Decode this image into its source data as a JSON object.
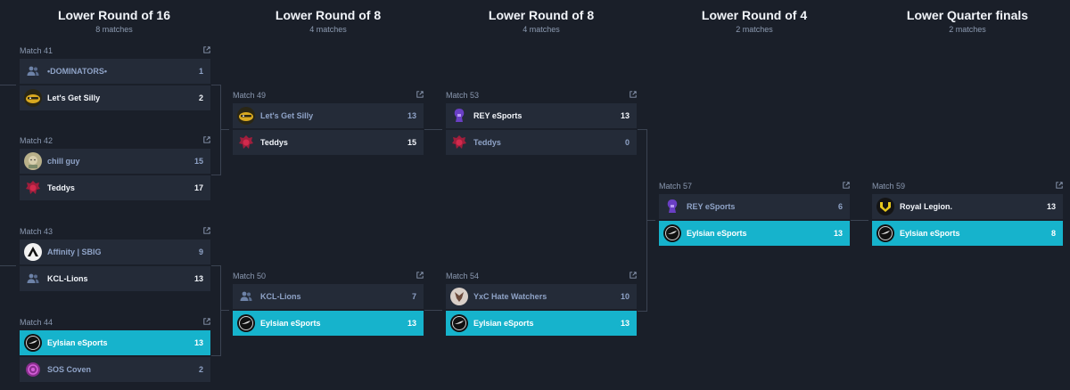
{
  "rounds": [
    {
      "title": "Lower Round of 16",
      "subtitle": "8 matches"
    },
    {
      "title": "Lower Round of 8",
      "subtitle": "4 matches"
    },
    {
      "title": "Lower Round of 8",
      "subtitle": "4 matches"
    },
    {
      "title": "Lower Round of 4",
      "subtitle": "2 matches"
    },
    {
      "title": "Lower Quarter finals",
      "subtitle": "2 matches"
    }
  ],
  "matches": [
    {
      "label": "Match 41",
      "teams": [
        {
          "name": "•DOMINATORS•",
          "score": "1",
          "logo": "group-icon"
        },
        {
          "name": "Let's Get Silly",
          "score": "2",
          "logo": "silly-logo"
        }
      ]
    },
    {
      "label": "Match 42",
      "teams": [
        {
          "name": "chill guy",
          "score": "15",
          "logo": "chill-guy-logo"
        },
        {
          "name": "Teddys",
          "score": "17",
          "logo": "teddys-logo"
        }
      ]
    },
    {
      "label": "Match 43",
      "teams": [
        {
          "name": "Affinity | SBIG",
          "score": "9",
          "logo": "affinity-logo"
        },
        {
          "name": "KCL-Lions",
          "score": "13",
          "logo": "group-icon"
        }
      ]
    },
    {
      "label": "Match 44",
      "teams": [
        {
          "name": "Eylsian eSports",
          "score": "13",
          "logo": "eylsian-logo"
        },
        {
          "name": "SOS Coven",
          "score": "2",
          "logo": "sos-logo"
        }
      ]
    },
    {
      "label": "Match 49",
      "teams": [
        {
          "name": "Let's Get Silly",
          "score": "13",
          "logo": "silly-logo"
        },
        {
          "name": "Teddys",
          "score": "15",
          "logo": "teddys-logo"
        }
      ]
    },
    {
      "label": "Match 50",
      "teams": [
        {
          "name": "KCL-Lions",
          "score": "7",
          "logo": "group-icon"
        },
        {
          "name": "Eylsian eSports",
          "score": "13",
          "logo": "eylsian-logo"
        }
      ]
    },
    {
      "label": "Match 53",
      "teams": [
        {
          "name": "REY eSports",
          "score": "13",
          "logo": "rey-logo"
        },
        {
          "name": "Teddys",
          "score": "0",
          "logo": "teddys-logo"
        }
      ]
    },
    {
      "label": "Match 54",
      "teams": [
        {
          "name": "YxC Hate Watchers",
          "score": "10",
          "logo": "yxc-logo"
        },
        {
          "name": "Eylsian eSports",
          "score": "13",
          "logo": "eylsian-logo"
        }
      ]
    },
    {
      "label": "Match 57",
      "teams": [
        {
          "name": "REY eSports",
          "score": "6",
          "logo": "rey-logo"
        },
        {
          "name": "Eylsian eSports",
          "score": "13",
          "logo": "eylsian-logo"
        }
      ]
    },
    {
      "label": "Match 59",
      "teams": [
        {
          "name": "Royal Legion.",
          "score": "13",
          "logo": "royal-legion-logo"
        },
        {
          "name": "Eylsian eSports",
          "score": "8",
          "logo": "eylsian-logo"
        }
      ]
    }
  ],
  "colors": {
    "background": "#1a1f29",
    "card": "#242b38",
    "highlight": "#16b3cc",
    "loser_text": "#8fa3c7"
  }
}
